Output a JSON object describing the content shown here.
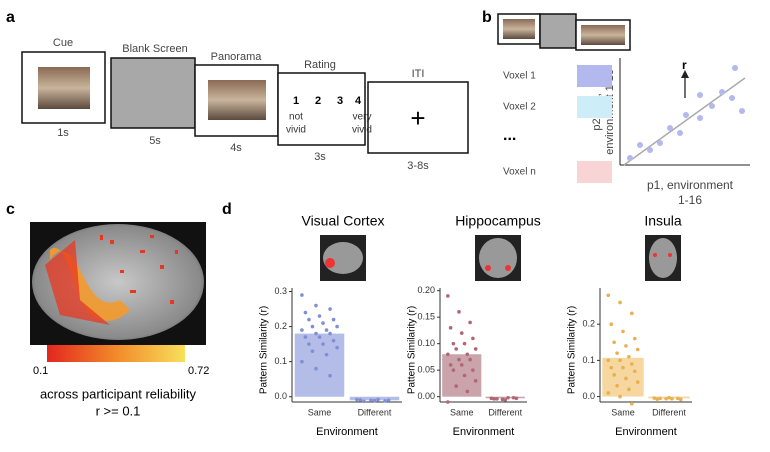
{
  "panel_labels": [
    "a",
    "b",
    "c",
    "d"
  ],
  "timeline": {
    "steps": [
      {
        "title": "Cue",
        "duration": "1s"
      },
      {
        "title": "Blank Screen",
        "duration": "5s"
      },
      {
        "title": "Panorama",
        "duration": "4s"
      },
      {
        "title": "Rating",
        "duration": "3s"
      },
      {
        "title": "ITI",
        "duration": "3-8s"
      }
    ],
    "rating": {
      "numbers": [
        "1",
        "2",
        "3",
        "4"
      ],
      "low": [
        "not",
        "vivid"
      ],
      "high": [
        "very",
        "vivid"
      ]
    },
    "fixation": "+"
  },
  "rsa": {
    "voxels": [
      {
        "label": "Voxel 1",
        "color": "#b3b8ee"
      },
      {
        "label": "Voxel 2",
        "color": "#cdeef8"
      },
      {
        "label": "...",
        "color": null
      },
      {
        "label": "Voxel n",
        "color": "#f9d4d4"
      }
    ],
    "r_label": "r",
    "ylabel": [
      "p2-p32,",
      "environment 1-16"
    ],
    "xlabel": [
      "p1, environment",
      "1-16"
    ]
  },
  "reliability": {
    "colorbar_min": "0.1",
    "colorbar_max": "0.72",
    "caption": [
      "across participant reliability",
      "r >= 0.1"
    ]
  },
  "chart_data": [
    {
      "type": "bar",
      "title": "Visual Cortex",
      "categories": [
        "Same",
        "Different"
      ],
      "values": [
        0.18,
        -0.01
      ],
      "points": [
        [
          0.29,
          0.26,
          0.25,
          0.24,
          0.23,
          0.22,
          0.22,
          0.21,
          0.2,
          0.2,
          0.19,
          0.19,
          0.18,
          0.18,
          0.17,
          0.17,
          0.16,
          0.15,
          0.15,
          0.14,
          0.13,
          0.12,
          0.1,
          0.08,
          0.06
        ],
        [
          -0.008,
          -0.01,
          -0.012,
          -0.009,
          -0.011,
          -0.01,
          -0.013,
          -0.008
        ]
      ],
      "color": "#b4bce8",
      "point_color": "#7f8fd6",
      "xlabel": "Environment",
      "ylabel": "Pattern Similarity (r)",
      "ylim": [
        -0.015,
        0.31
      ],
      "yticks": [
        {
          "value": 0,
          "label": "0.0"
        },
        0.1,
        0.2,
        0.3
      ]
    },
    {
      "type": "bar",
      "title": "Hippocampus",
      "categories": [
        "Same",
        "Different"
      ],
      "values": [
        0.08,
        -0.003
      ],
      "points": [
        [
          0.19,
          0.16,
          0.14,
          0.13,
          0.12,
          0.11,
          0.1,
          0.1,
          0.09,
          0.09,
          0.08,
          0.08,
          0.07,
          0.07,
          0.06,
          0.06,
          0.05,
          0.05,
          0.04,
          0.03,
          0.02,
          0.01,
          -0.01
        ],
        [
          -0.003,
          -0.005,
          -0.002,
          -0.004,
          -0.006,
          -0.003,
          -0.004,
          -0.002
        ]
      ],
      "color": "#caa3ab",
      "point_color": "#b06676",
      "xlabel": "Environment",
      "ylabel": "Pattern Similarity (r)",
      "ylim": [
        -0.01,
        0.205
      ],
      "yticks": [
        {
          "value": 0,
          "label": "0.00"
        },
        0.05,
        {
          "value": 0.1,
          "label": "0.10"
        },
        0.15,
        {
          "value": 0.2,
          "label": "0.20"
        }
      ]
    },
    {
      "type": "bar",
      "title": "Insula",
      "categories": [
        "Same",
        "Different"
      ],
      "values": [
        0.107,
        -0.005
      ],
      "points": [
        [
          0.28,
          0.26,
          0.23,
          0.2,
          0.18,
          0.16,
          0.15,
          0.14,
          0.13,
          0.12,
          0.11,
          0.1,
          0.1,
          0.09,
          0.08,
          0.08,
          0.07,
          0.06,
          0.05,
          0.04,
          0.03,
          0.02,
          0.01,
          0,
          -0.02
        ],
        [
          -0.004,
          -0.006,
          -0.005,
          -0.007,
          -0.003,
          -0.008,
          -0.005,
          -0.006
        ]
      ],
      "color": "#f5d79f",
      "point_color": "#e8b04e",
      "xlabel": "Environment",
      "ylabel": "Pattern Similarity (r)",
      "ylim": [
        -0.015,
        0.3
      ],
      "yticks": [
        {
          "value": 0,
          "label": "0.0"
        },
        0.1,
        0.2
      ]
    }
  ]
}
